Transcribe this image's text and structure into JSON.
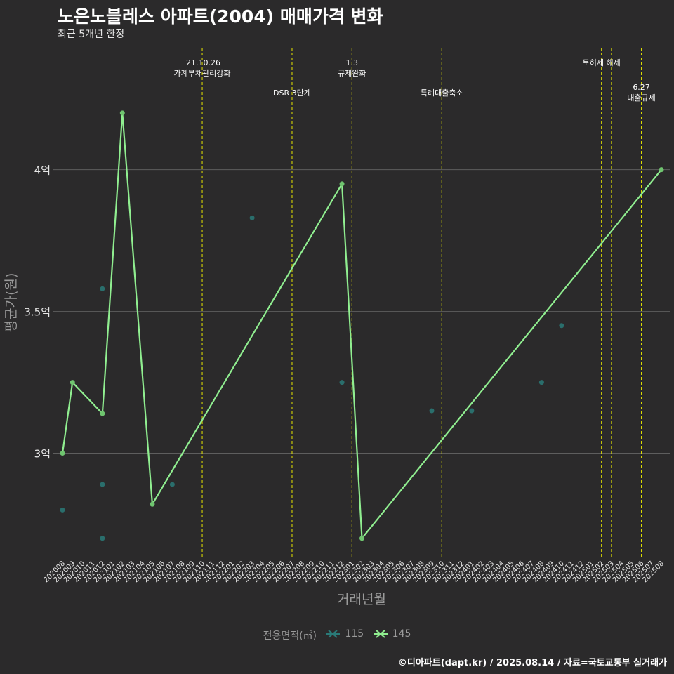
{
  "title": "노은노블레스 아파트(2004) 매매가격 변화",
  "subtitle": "최근 5개년 한정",
  "caption": "©디아파트(dapt.kr) / 2025.08.14 / 자료=국토교통부 실거래가",
  "colors": {
    "background": "#2b2a2b",
    "grid": "#5e5e5e",
    "line145": "#90ee90",
    "point115": "#2a7a78",
    "event": "#e6e600",
    "text": "#e6e6e6",
    "muted": "#9a9a9a"
  },
  "legend": {
    "title": "전용면적(㎡)",
    "items": [
      {
        "label": "115",
        "color": "#2a7a78"
      },
      {
        "label": "145",
        "color": "#90ee90"
      }
    ]
  },
  "chart_data": {
    "type": "line",
    "xlabel": "거래년월",
    "ylabel": "평균가(원)",
    "ylim": [
      2.63,
      4.43
    ],
    "yticks": [
      {
        "value": 3.0,
        "label": "3억"
      },
      {
        "value": 3.5,
        "label": "3.5억"
      },
      {
        "value": 4.0,
        "label": "4억"
      }
    ],
    "categories": [
      "202008",
      "202009",
      "202010",
      "202011",
      "202012",
      "202101",
      "202102",
      "202103",
      "202104",
      "202105",
      "202106",
      "202107",
      "202108",
      "202109",
      "202110",
      "202111",
      "202112",
      "202201",
      "202202",
      "202203",
      "202204",
      "202205",
      "202206",
      "202207",
      "202208",
      "202209",
      "202210",
      "202211",
      "202212",
      "202301",
      "202302",
      "202303",
      "202304",
      "202305",
      "202306",
      "202307",
      "202308",
      "202309",
      "202310",
      "202311",
      "202312",
      "202401",
      "202402",
      "202403",
      "202404",
      "202405",
      "202406",
      "202407",
      "202408",
      "202409",
      "202410",
      "202411",
      "202412",
      "202501",
      "202502",
      "202503",
      "202504",
      "202505",
      "202506",
      "202507",
      "202508"
    ],
    "series": [
      {
        "name": "145",
        "kind": "line",
        "points": [
          [
            "202008",
            3.0
          ],
          [
            "202009",
            3.25
          ],
          [
            "202012",
            3.14
          ],
          [
            "202102",
            4.2
          ],
          [
            "202105",
            2.82
          ],
          [
            "202212",
            3.95
          ],
          [
            "202302",
            2.7
          ],
          [
            "202508",
            4.0
          ]
        ]
      },
      {
        "name": "115",
        "kind": "points",
        "points": [
          [
            "202008",
            2.8
          ],
          [
            "202012",
            3.58
          ],
          [
            "202012",
            2.89
          ],
          [
            "202012",
            2.7
          ],
          [
            "202107",
            2.89
          ],
          [
            "202203",
            3.83
          ],
          [
            "202212",
            3.25
          ],
          [
            "202309",
            3.15
          ],
          [
            "202401",
            3.15
          ],
          [
            "202408",
            3.25
          ],
          [
            "202410",
            3.45
          ]
        ]
      }
    ],
    "events": [
      {
        "x": "202110",
        "offset": 0.0,
        "lines": [
          "'21.10.26",
          "가계부채관리강화"
        ],
        "row": 0
      },
      {
        "x": "202207",
        "offset": 0.0,
        "lines": [
          "DSR 3단계"
        ],
        "row": 1
      },
      {
        "x": "202301",
        "offset": 0.0,
        "lines": [
          "1.3",
          "규제완화"
        ],
        "row": 0
      },
      {
        "x": "202310",
        "offset": 0.0,
        "lines": [
          "특례대출축소"
        ],
        "row": 1
      },
      {
        "x": "202502",
        "offset": 0.0,
        "lines": [
          "토허제 해제"
        ],
        "row": 0,
        "anchor_x": 0.5
      },
      {
        "x": "202503",
        "offset": 0.0,
        "lines": [],
        "row": 0
      },
      {
        "x": "202506",
        "offset": 0.0,
        "lines": [
          "6.27",
          "대출규제"
        ],
        "row": 2
      }
    ]
  }
}
